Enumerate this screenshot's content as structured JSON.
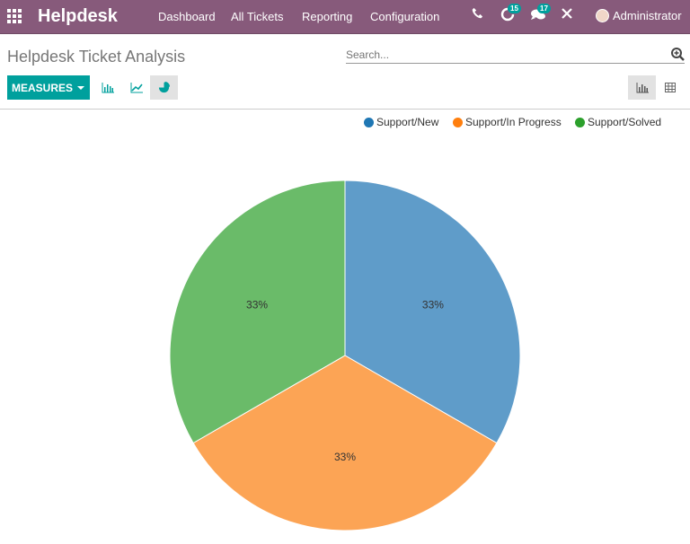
{
  "navbar": {
    "brand": "Helpdesk",
    "menu": [
      "Dashboard",
      "All Tickets",
      "Reporting",
      "Configuration"
    ],
    "activity_count": "15",
    "messages_count": "17",
    "user": "Administrator",
    "bg_color": "#875a7b"
  },
  "control_panel": {
    "title": "Helpdesk Ticket Analysis",
    "search_placeholder": "Search...",
    "measures_label": "MEASURES",
    "accent_color": "#00a09d"
  },
  "chart_data": {
    "type": "pie",
    "title": "",
    "categories": [
      "Support/New",
      "Support/In Progress",
      "Support/Solved"
    ],
    "values": [
      33.33,
      33.33,
      33.33
    ],
    "labels": [
      "33%",
      "33%",
      "33%"
    ],
    "colors": [
      "#5f9cc9",
      "#fca455",
      "#6abb69"
    ],
    "legend_colors": [
      "#1f77b4",
      "#ff7f0e",
      "#2ca02c"
    ],
    "legend_position": "top-right",
    "start_angle": "12 o'clock, clockwise"
  }
}
